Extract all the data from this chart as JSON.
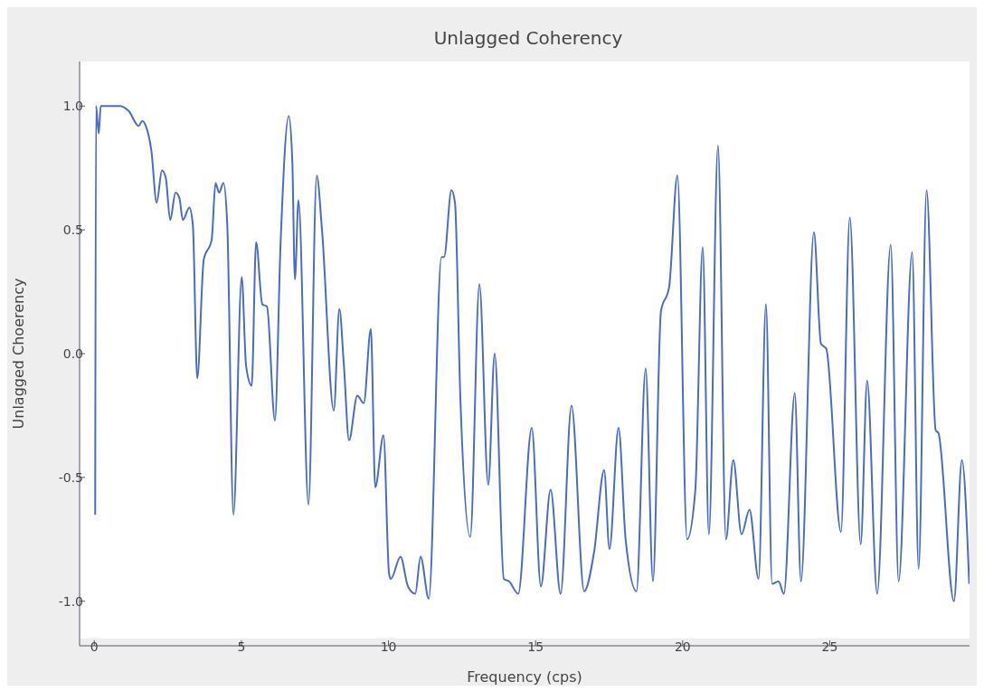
{
  "chart_data": {
    "type": "line",
    "title": "Unlagged Coherency",
    "xlabel": "Frequency (cps)",
    "ylabel": "Unlagged Choerency",
    "color": "#4a6cc8",
    "x": [
      0.03,
      0.06,
      0.15,
      0.22,
      0.28,
      0.52,
      0.86,
      1.17,
      1.51,
      1.63,
      1.75,
      1.94,
      2.12,
      2.3,
      2.43,
      2.58,
      2.76,
      2.89,
      3.01,
      3.23,
      3.35,
      3.5,
      3.72,
      3.99,
      4.12,
      4.24,
      4.39,
      4.52,
      4.73,
      5.01,
      5.16,
      5.35,
      5.5,
      5.71,
      5.87,
      6.14,
      6.33,
      6.61,
      6.73,
      6.82,
      6.94,
      7.28,
      7.56,
      7.74,
      8.14,
      8.33,
      8.48,
      8.66,
      8.94,
      9.16,
      9.4,
      9.55,
      9.83,
      10.02,
      10.08,
      10.41,
      10.66,
      10.91,
      11.09,
      11.37,
      11.8,
      11.89,
      12.14,
      12.26,
      12.44,
      12.78,
      13.09,
      13.39,
      13.61,
      13.92,
      14.1,
      14.41,
      14.87,
      15.18,
      15.51,
      15.85,
      16.22,
      16.65,
      16.99,
      17.33,
      17.51,
      17.82,
      18.06,
      18.43,
      18.74,
      18.99,
      19.26,
      19.54,
      19.82,
      20.15,
      20.43,
      20.68,
      20.89,
      21.2,
      21.47,
      21.72,
      22.0,
      22.27,
      22.58,
      22.83,
      23.04,
      23.26,
      23.44,
      23.81,
      24.02,
      24.46,
      24.7,
      24.88,
      25.38,
      25.68,
      26.05,
      26.27,
      26.61,
      27.07,
      27.34,
      27.8,
      28.02,
      28.29,
      28.6,
      28.69,
      29.22,
      29.49,
      29.74
    ],
    "values": [
      -0.65,
      1.0,
      0.89,
      1.0,
      1.0,
      1.0,
      1.0,
      0.98,
      0.92,
      0.94,
      0.92,
      0.82,
      0.61,
      0.74,
      0.71,
      0.54,
      0.65,
      0.63,
      0.54,
      0.59,
      0.52,
      -0.1,
      0.38,
      0.46,
      0.69,
      0.65,
      0.69,
      0.52,
      -0.65,
      0.31,
      -0.05,
      -0.13,
      0.45,
      0.2,
      0.19,
      -0.27,
      0.44,
      0.96,
      0.78,
      0.3,
      0.62,
      -0.61,
      0.72,
      0.5,
      -0.23,
      0.18,
      -0.04,
      -0.35,
      -0.17,
      -0.2,
      0.1,
      -0.54,
      -0.33,
      -0.89,
      -0.91,
      -0.82,
      -0.94,
      -0.97,
      -0.82,
      -0.99,
      0.39,
      0.39,
      0.66,
      0.61,
      -0.17,
      -0.74,
      0.28,
      -0.53,
      0.0,
      -0.91,
      -0.92,
      -0.97,
      -0.3,
      -0.94,
      -0.55,
      -0.97,
      -0.21,
      -0.96,
      -0.8,
      -0.47,
      -0.79,
      -0.3,
      -0.75,
      -0.96,
      -0.06,
      -0.92,
      0.17,
      0.27,
      0.72,
      -0.75,
      -0.55,
      0.43,
      -0.73,
      0.84,
      -0.75,
      -0.43,
      -0.73,
      -0.63,
      -0.91,
      0.2,
      -0.93,
      -0.92,
      -0.97,
      -0.16,
      -0.92,
      0.49,
      0.04,
      0.02,
      -0.72,
      0.55,
      -0.77,
      -0.11,
      -0.97,
      0.44,
      -0.92,
      0.41,
      -0.87,
      0.66,
      -0.31,
      -0.32,
      -1.0,
      -0.43,
      -0.93
    ],
    "xlim": [
      -0.5,
      29.75
    ],
    "ylim": [
      -1.18,
      1.18
    ],
    "xticks": [
      0,
      5,
      10,
      15,
      20,
      25
    ],
    "yticks": [
      {
        "value": -1.0,
        "label": "-1.0"
      },
      {
        "value": -0.5,
        "label": "-0.5"
      },
      {
        "value": 0.0,
        "label": "0.0"
      },
      {
        "value": 0.5,
        "label": "0.5"
      },
      {
        "value": 1.0,
        "label": "1.0"
      }
    ]
  }
}
